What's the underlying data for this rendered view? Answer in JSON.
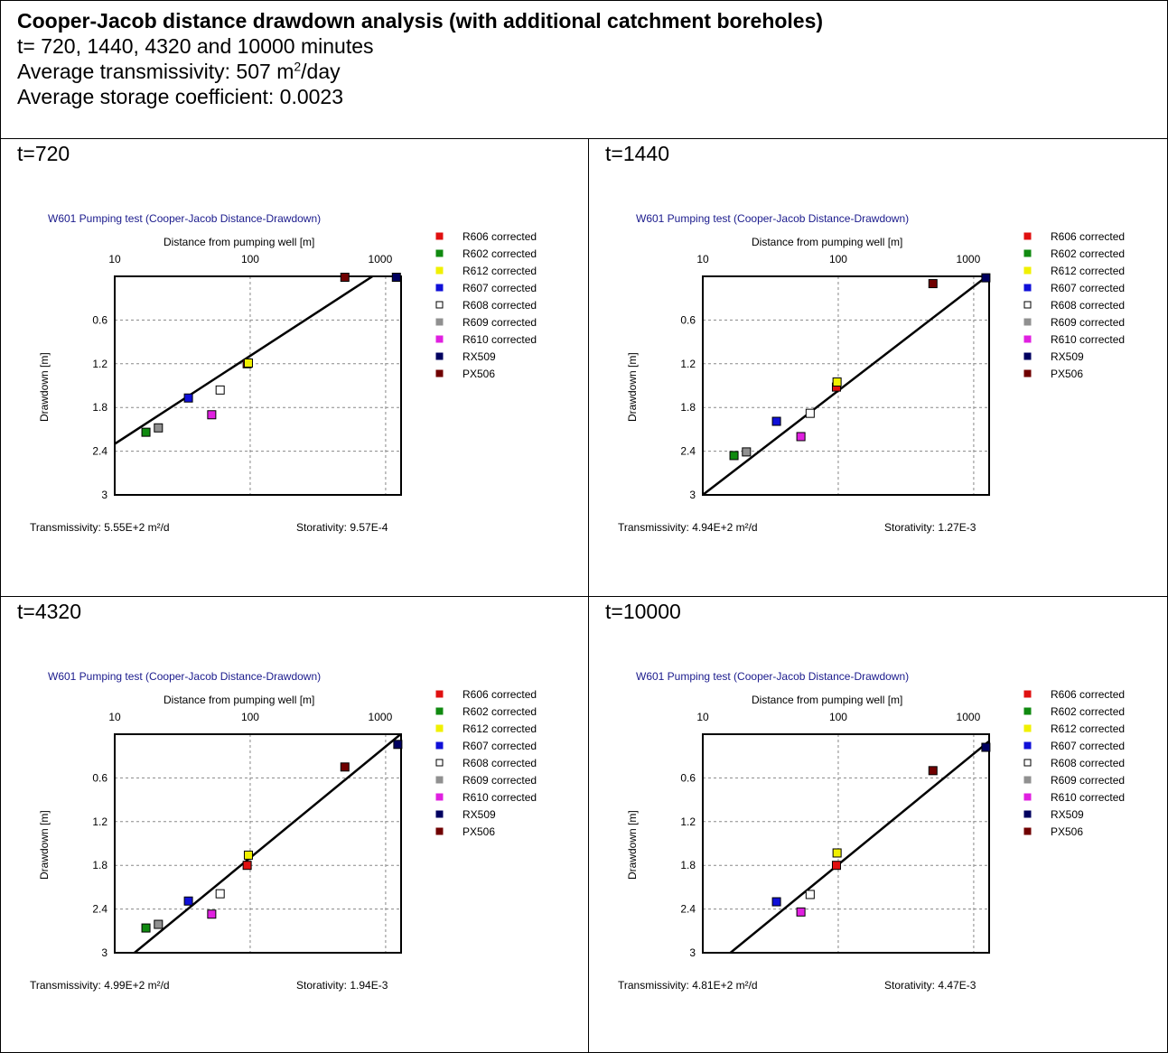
{
  "header": {
    "title": "Cooper-Jacob distance drawdown analysis (with additional catchment boreholes)",
    "times_line": "t= 720, 1440, 4320 and 10000 minutes",
    "transmissivity_prefix": "Average transmissivity: 507 m",
    "transmissivity_sup": "2",
    "transmissivity_suffix": "/day",
    "storage_line": "Average storage coefficient: 0.0023"
  },
  "legend": [
    {
      "name": "R606 corrected",
      "color": "#e01010",
      "hollow": false
    },
    {
      "name": "R602 corrected",
      "color": "#108a10",
      "hollow": false
    },
    {
      "name": "R612 corrected",
      "color": "#f0f000",
      "hollow": false
    },
    {
      "name": "R607 corrected",
      "color": "#1010d8",
      "hollow": false
    },
    {
      "name": "R608 corrected",
      "color": "#ffffff",
      "hollow": true
    },
    {
      "name": "R609 corrected",
      "color": "#909090",
      "hollow": false
    },
    {
      "name": "R610 corrected",
      "color": "#e020e0",
      "hollow": false
    },
    {
      "name": "RX509",
      "color": "#000060",
      "hollow": false
    },
    {
      "name": "PX506",
      "color": "#700000",
      "hollow": false
    }
  ],
  "chart_data": [
    {
      "type": "scatter",
      "panel_label": "t=720",
      "title": "W601 Pumping test (Cooper-Jacob Distance-Drawdown)",
      "xlabel": "Distance from pumping well [m]",
      "ylabel": "Drawdown [m]",
      "x_scale": "log",
      "xlim": [
        10,
        1300
      ],
      "x_ticks": [
        "10",
        "100",
        "1000"
      ],
      "ylim": [
        0,
        3
      ],
      "y_inverted": true,
      "y_ticks": [
        "0.6",
        "1.2",
        "1.8",
        "2.4",
        "3"
      ],
      "grid": true,
      "points": [
        {
          "series": "R606 corrected",
          "x": 95,
          "y": 1.2
        },
        {
          "series": "R602 corrected",
          "x": 17,
          "y": 2.14
        },
        {
          "series": "R612 corrected",
          "x": 97,
          "y": 1.19
        },
        {
          "series": "R607 corrected",
          "x": 35,
          "y": 1.67
        },
        {
          "series": "R608 corrected",
          "x": 60,
          "y": 1.56
        },
        {
          "series": "R609 corrected",
          "x": 21,
          "y": 2.08
        },
        {
          "series": "R610 corrected",
          "x": 52,
          "y": 1.9
        },
        {
          "series": "RX509",
          "x": 1200,
          "y": 0.0
        },
        {
          "series": "PX506",
          "x": 500,
          "y": 0.0
        }
      ],
      "fit_line": [
        [
          10,
          2.3
        ],
        [
          800,
          0.0
        ]
      ],
      "transmissivity_text": "Transmissivity: 5.55E+2 m²/d",
      "storativity_text": "Storativity: 9.57E-4"
    },
    {
      "type": "scatter",
      "panel_label": "t=1440",
      "title": "W601 Pumping test (Cooper-Jacob Distance-Drawdown)",
      "xlabel": "Distance from pumping well [m]",
      "ylabel": "Drawdown [m]",
      "x_scale": "log",
      "xlim": [
        10,
        1300
      ],
      "x_ticks": [
        "10",
        "100",
        "1000"
      ],
      "ylim": [
        0,
        3
      ],
      "y_inverted": true,
      "y_ticks": [
        "0.6",
        "1.2",
        "1.8",
        "2.4",
        "3"
      ],
      "grid": true,
      "points": [
        {
          "series": "R606 corrected",
          "x": 97,
          "y": 1.52
        },
        {
          "series": "R602 corrected",
          "x": 17,
          "y": 2.46
        },
        {
          "series": "R612 corrected",
          "x": 98,
          "y": 1.45
        },
        {
          "series": "R607 corrected",
          "x": 35,
          "y": 1.99
        },
        {
          "series": "R608 corrected",
          "x": 62,
          "y": 1.88
        },
        {
          "series": "R609 corrected",
          "x": 21,
          "y": 2.41
        },
        {
          "series": "R610 corrected",
          "x": 53,
          "y": 2.2
        },
        {
          "series": "RX509",
          "x": 1230,
          "y": 0.02
        },
        {
          "series": "PX506",
          "x": 500,
          "y": 0.1
        }
      ],
      "fit_line": [
        [
          10,
          3.0
        ],
        [
          1250,
          0.0
        ]
      ],
      "transmissivity_text": "Transmissivity: 4.94E+2 m²/d",
      "storativity_text": "Storativity: 1.27E-3"
    },
    {
      "type": "scatter",
      "panel_label": "t=4320",
      "title": "W601 Pumping test (Cooper-Jacob Distance-Drawdown)",
      "xlabel": "Distance from pumping well [m]",
      "ylabel": "Drawdown [m]",
      "x_scale": "log",
      "xlim": [
        10,
        1300
      ],
      "x_ticks": [
        "10",
        "100",
        "1000"
      ],
      "ylim": [
        0,
        3
      ],
      "y_inverted": true,
      "y_ticks": [
        "0.6",
        "1.2",
        "1.8",
        "2.4",
        "3"
      ],
      "grid": true,
      "points": [
        {
          "series": "R606 corrected",
          "x": 95,
          "y": 1.8
        },
        {
          "series": "R602 corrected",
          "x": 17,
          "y": 2.66
        },
        {
          "series": "R612 corrected",
          "x": 97,
          "y": 1.66
        },
        {
          "series": "R607 corrected",
          "x": 35,
          "y": 2.29
        },
        {
          "series": "R608 corrected",
          "x": 60,
          "y": 2.19
        },
        {
          "series": "R609 corrected",
          "x": 21,
          "y": 2.61
        },
        {
          "series": "R610 corrected",
          "x": 52,
          "y": 2.47
        },
        {
          "series": "RX509",
          "x": 1230,
          "y": 0.14
        },
        {
          "series": "PX506",
          "x": 500,
          "y": 0.45
        }
      ],
      "fit_line": [
        [
          14,
          3.0
        ],
        [
          1290,
          0.0
        ]
      ],
      "transmissivity_text": "Transmissivity: 4.99E+2 m²/d",
      "storativity_text": "Storativity: 1.94E-3"
    },
    {
      "type": "scatter",
      "panel_label": "t=10000",
      "title": "W601 Pumping test (Cooper-Jacob Distance-Drawdown)",
      "xlabel": "Distance from pumping well [m]",
      "ylabel": "Drawdown [m]",
      "x_scale": "log",
      "xlim": [
        10,
        1300
      ],
      "x_ticks": [
        "10",
        "100",
        "1000"
      ],
      "ylim": [
        0,
        3
      ],
      "y_inverted": true,
      "y_ticks": [
        "0.6",
        "1.2",
        "1.8",
        "2.4",
        "3"
      ],
      "grid": true,
      "points": [
        {
          "series": "R606 corrected",
          "x": 97,
          "y": 1.8
        },
        {
          "series": "R612 corrected",
          "x": 98,
          "y": 1.63
        },
        {
          "series": "R607 corrected",
          "x": 35,
          "y": 2.3
        },
        {
          "series": "R608 corrected",
          "x": 62,
          "y": 2.2
        },
        {
          "series": "R610 corrected",
          "x": 53,
          "y": 2.44
        },
        {
          "series": "RX509",
          "x": 1230,
          "y": 0.18
        },
        {
          "series": "PX506",
          "x": 500,
          "y": 0.5
        }
      ],
      "fit_line": [
        [
          16,
          3.0
        ],
        [
          1290,
          0.1
        ]
      ],
      "transmissivity_text": "Transmissivity: 4.81E+2 m²/d",
      "storativity_text": "Storativity: 4.47E-3"
    }
  ]
}
